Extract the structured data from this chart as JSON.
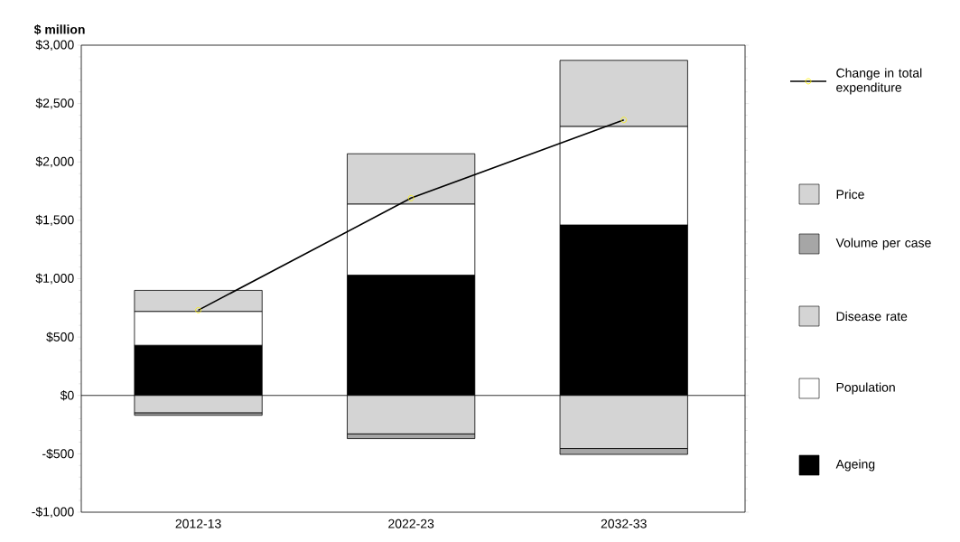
{
  "chart_data": {
    "type": "bar",
    "stacked": true,
    "ylabel": "$ million",
    "categories": [
      "2012-13",
      "2022-23",
      "2032-33"
    ],
    "series": [
      {
        "name": "Ageing",
        "color": "#000000",
        "values": [
          430,
          1030,
          1460
        ]
      },
      {
        "name": "Population",
        "color": "#ffffff",
        "values": [
          290,
          610,
          845
        ]
      },
      {
        "name": "Disease rate",
        "color": "#d4d4d4",
        "values": [
          -150,
          -330,
          -455
        ]
      },
      {
        "name": "Volume per case",
        "color": "#a6a6a6",
        "values": [
          -20,
          -40,
          -50
        ]
      },
      {
        "name": "Price",
        "color": "#d4d4d4",
        "values": [
          180,
          430,
          565
        ]
      },
      {
        "name": "Change in total expenditure",
        "type": "line",
        "color": "#000000",
        "marker": "circle",
        "values": [
          730,
          1690,
          2360
        ]
      }
    ],
    "ylim": [
      -1000,
      3000
    ],
    "yticks": [
      {
        "value": -1000,
        "label": "-$1,000"
      },
      {
        "value": -500,
        "label": "-$500"
      },
      {
        "value": 0,
        "label": "$0"
      },
      {
        "value": 500,
        "label": "$500"
      },
      {
        "value": 1000,
        "label": "$1,000"
      },
      {
        "value": 1500,
        "label": "$1,500"
      },
      {
        "value": 2000,
        "label": "$2,000"
      },
      {
        "value": 2500,
        "label": "$2,500"
      },
      {
        "value": 3000,
        "label": "$3,000"
      }
    ],
    "legend": "right"
  }
}
